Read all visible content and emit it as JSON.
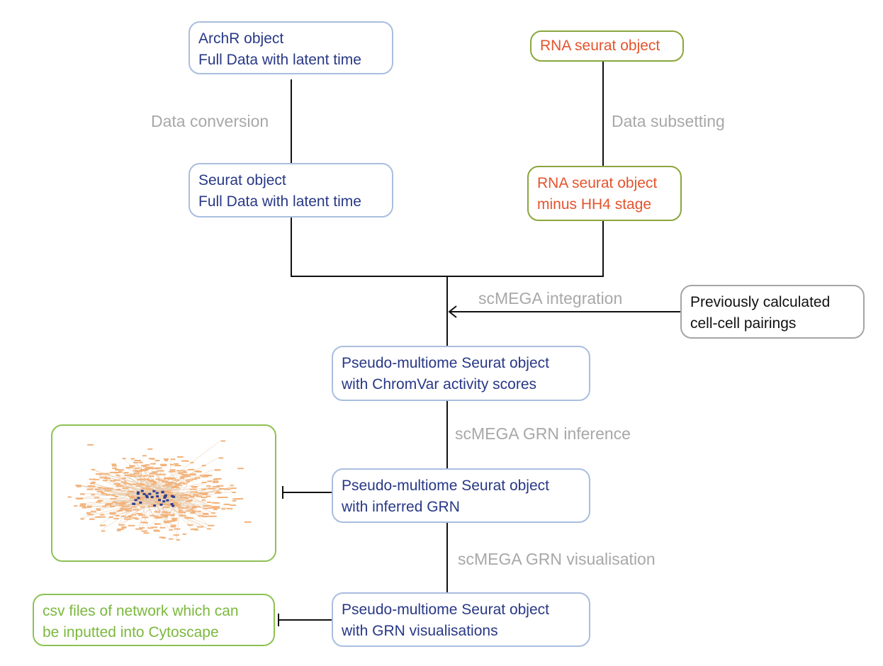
{
  "nodes": {
    "archr": {
      "line1": "ArchR object",
      "line2": "Full Data with latent time"
    },
    "seurat_full": {
      "line1": "Seurat object",
      "line2": "Full Data with latent time"
    },
    "rna_seurat": {
      "line1": "RNA seurat object"
    },
    "rna_minus": {
      "line1": "RNA seurat object",
      "line2": "minus HH4 stage"
    },
    "pairings": {
      "line1": "Previously calculated",
      "line2": "cell-cell pairings"
    },
    "chromvar": {
      "line1": "Pseudo-multiome Seurat object",
      "line2": "with ChromVar activity scores"
    },
    "inferred": {
      "line1": "Pseudo-multiome Seurat object",
      "line2": "with inferred GRN"
    },
    "visualisations": {
      "line1": "Pseudo-multiome Seurat object",
      "line2": "with GRN visualisations"
    },
    "csv": {
      "line1": "csv files of network which can",
      "line2": "be inputted into Cytoscape"
    }
  },
  "edges": {
    "data_conversion": "Data conversion",
    "data_subsetting": "Data subsetting",
    "integration": "scMEGA integration",
    "grn_inference": "scMEGA GRN inference",
    "grn_visualisation": "scMEGA GRN visualisation"
  },
  "colors": {
    "blue_text": "#283886",
    "blue_border": "#a9bedf",
    "orange_text": "#e4542d",
    "olive_border": "#8aa63d",
    "green_text": "#7cb83e",
    "green_border": "#8dc154",
    "label_grey": "#a8a8a8",
    "network_node": "#f2b27a",
    "network_hub": "#2e3f8f"
  },
  "icons": {
    "network_thumbnail": "grn-network-graph-image"
  }
}
